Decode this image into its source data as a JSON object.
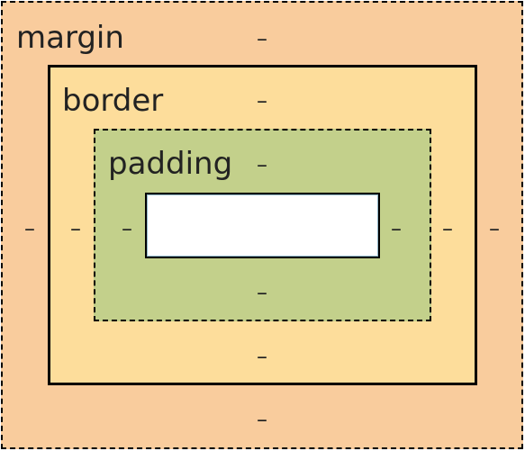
{
  "box_model": {
    "margin": {
      "label": "margin",
      "top": "–",
      "right": "–",
      "bottom": "–",
      "left": "–"
    },
    "border": {
      "label": "border",
      "top": "–",
      "right": "–",
      "bottom": "–",
      "left": "–"
    },
    "padding": {
      "label": "padding",
      "top": "–",
      "right": "–",
      "bottom": "–",
      "left": "–"
    },
    "content": {
      "size": ""
    }
  },
  "colors": {
    "margin": "#f9cc9d",
    "border": "#fddd9b",
    "padding": "#c3d08b",
    "content": "#ffffff"
  }
}
